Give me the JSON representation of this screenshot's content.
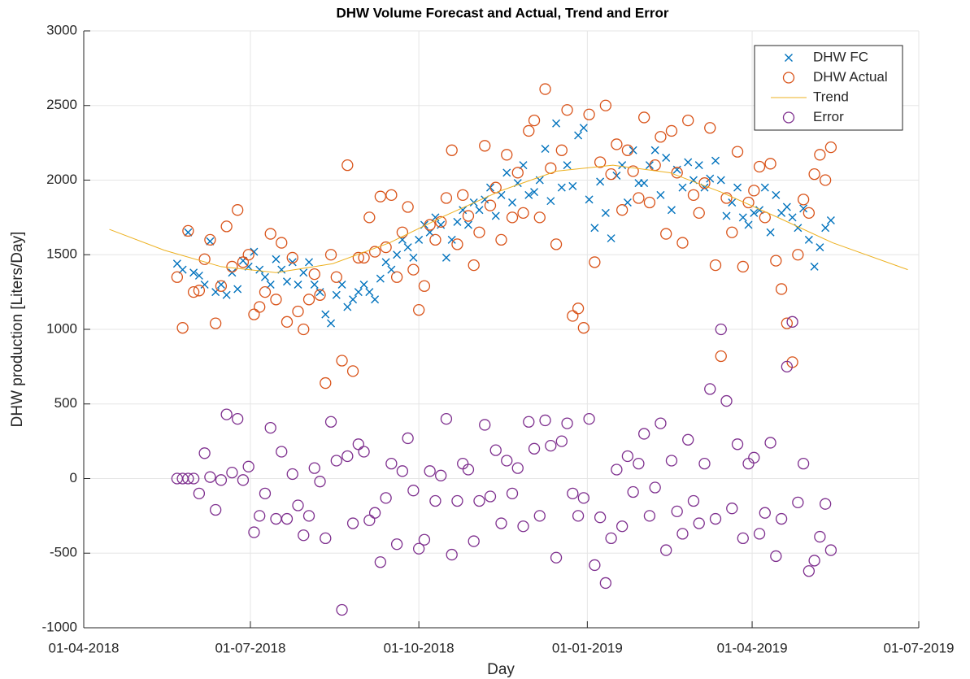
{
  "chart_data": {
    "type": "scatter",
    "title": "DHW Volume Forecast and Actual, Trend and Error",
    "x_label": "Day",
    "y_label": "DHW production [Liters/Day]",
    "xlim": [
      "2018-04-01",
      "2019-07-01"
    ],
    "xticks": [
      {
        "value": "2018-04-01",
        "label": "01-04-2018"
      },
      {
        "value": "2018-07-01",
        "label": "01-07-2018"
      },
      {
        "value": "2018-10-01",
        "label": "01-10-2018"
      },
      {
        "value": "2019-01-01",
        "label": "01-01-2019"
      },
      {
        "value": "2019-04-01",
        "label": "01-04-2019"
      },
      {
        "value": "2019-07-01",
        "label": "01-07-2019"
      }
    ],
    "ylim": [
      -1000,
      3000
    ],
    "yticks": [
      -1000,
      -500,
      0,
      500,
      1000,
      1500,
      2000,
      2500,
      3000
    ],
    "grid": true,
    "legend": "top-right",
    "x": [
      "2018-05-22",
      "2018-05-25",
      "2018-05-28",
      "2018-05-31",
      "2018-06-03",
      "2018-06-06",
      "2018-06-09",
      "2018-06-12",
      "2018-06-15",
      "2018-06-18",
      "2018-06-21",
      "2018-06-24",
      "2018-06-27",
      "2018-06-30",
      "2018-07-03",
      "2018-07-06",
      "2018-07-09",
      "2018-07-12",
      "2018-07-15",
      "2018-07-18",
      "2018-07-21",
      "2018-07-24",
      "2018-07-27",
      "2018-07-30",
      "2018-08-02",
      "2018-08-05",
      "2018-08-08",
      "2018-08-11",
      "2018-08-14",
      "2018-08-17",
      "2018-08-20",
      "2018-08-23",
      "2018-08-26",
      "2018-08-29",
      "2018-09-01",
      "2018-09-04",
      "2018-09-07",
      "2018-09-10",
      "2018-09-13",
      "2018-09-16",
      "2018-09-19",
      "2018-09-22",
      "2018-09-25",
      "2018-09-28",
      "2018-10-01",
      "2018-10-04",
      "2018-10-07",
      "2018-10-10",
      "2018-10-13",
      "2018-10-16",
      "2018-10-19",
      "2018-10-22",
      "2018-10-25",
      "2018-10-28",
      "2018-10-31",
      "2018-11-03",
      "2018-11-06",
      "2018-11-09",
      "2018-11-12",
      "2018-11-15",
      "2018-11-18",
      "2018-11-21",
      "2018-11-24",
      "2018-11-27",
      "2018-11-30",
      "2018-12-03",
      "2018-12-06",
      "2018-12-09",
      "2018-12-12",
      "2018-12-15",
      "2018-12-18",
      "2018-12-21",
      "2018-12-24",
      "2018-12-27",
      "2018-12-30",
      "2019-01-02",
      "2019-01-05",
      "2019-01-08",
      "2019-01-11",
      "2019-01-14",
      "2019-01-17",
      "2019-01-20",
      "2019-01-23",
      "2019-01-26",
      "2019-01-29",
      "2019-02-01",
      "2019-02-04",
      "2019-02-07",
      "2019-02-10",
      "2019-02-13",
      "2019-02-16",
      "2019-02-19",
      "2019-02-22",
      "2019-02-25",
      "2019-02-28",
      "2019-03-03",
      "2019-03-06",
      "2019-03-09",
      "2019-03-12",
      "2019-03-15",
      "2019-03-18",
      "2019-03-21",
      "2019-03-24",
      "2019-03-27",
      "2019-03-30",
      "2019-04-02",
      "2019-04-05",
      "2019-04-08",
      "2019-04-11",
      "2019-04-14",
      "2019-04-17",
      "2019-04-20",
      "2019-04-23",
      "2019-04-26",
      "2019-04-29",
      "2019-05-02",
      "2019-05-05",
      "2019-05-08",
      "2019-05-11",
      "2019-05-14"
    ],
    "series": [
      {
        "name": "DHW FC",
        "color": "#0072BD",
        "marker": "x",
        "values": [
          1440,
          1400,
          1650,
          1380,
          1360,
          1300,
          1590,
          1250,
          1300,
          1230,
          1380,
          1270,
          1460,
          1420,
          1520,
          1400,
          1350,
          1300,
          1470,
          1400,
          1320,
          1450,
          1300,
          1380,
          1450,
          1300,
          1250,
          1100,
          1040,
          1230,
          1300,
          1150,
          1200,
          1250,
          1300,
          1250,
          1200,
          1340,
          1450,
          1400,
          1500,
          1600,
          1550,
          1480,
          1600,
          1700,
          1650,
          1750,
          1700,
          1480,
          1600,
          1720,
          1800,
          1700,
          1850,
          1800,
          1870,
          1950,
          1760,
          1900,
          2050,
          1850,
          1980,
          2100,
          1900,
          1920,
          2000,
          2210,
          1860,
          2380,
          1950,
          2100,
          1960,
          2300,
          2350,
          1870,
          1680,
          1990,
          1780,
          1610,
          2030,
          2100,
          1850,
          2200,
          1980,
          1980,
          2100,
          2200,
          1900,
          2150,
          1800,
          2070,
          1950,
          2120,
          2000,
          2100,
          1950,
          2010,
          2130,
          2000,
          1760,
          1850,
          1950,
          1750,
          1700,
          1780,
          1800,
          1950,
          1650,
          1900,
          1780,
          1820,
          1750,
          1680,
          1810,
          1600,
          1420,
          1550,
          1680,
          1730
        ]
      },
      {
        "name": "DHW Actual",
        "color": "#D95319",
        "marker": "o",
        "values": [
          1350,
          1010,
          1660,
          1250,
          1260,
          1470,
          1600,
          1040,
          1290,
          1690,
          1420,
          1800,
          1450,
          1500,
          1100,
          1150,
          1250,
          1640,
          1200,
          1580,
          1050,
          1480,
          1120,
          1000,
          1200,
          1370,
          1230,
          640,
          1500,
          1350,
          790,
          2100,
          720,
          1480,
          1480,
          1750,
          1520,
          1890,
          1550,
          1900,
          1350,
          1650,
          1820,
          1400,
          1130,
          1290,
          1700,
          1600,
          1720,
          1880,
          2200,
          1570,
          1900,
          1760,
          1430,
          1650,
          2230,
          1830,
          1950,
          1600,
          2170,
          1750,
          2050,
          1780,
          2330,
          2400,
          1750,
          2610,
          2080,
          1570,
          2200,
          2470,
          1090,
          1140,
          1010,
          2440,
          1450,
          2120,
          2500,
          2040,
          2240,
          1800,
          2200,
          2060,
          1880,
          2420,
          1850,
          2100,
          2290,
          1640,
          2330,
          2050,
          1580,
          2400,
          1900,
          1780,
          1980,
          2350,
          1430,
          820,
          1880,
          1650,
          2190,
          1420,
          1850,
          1930,
          2090,
          1750,
          2110,
          1460,
          1270,
          1040,
          780,
          1500,
          1870,
          1780,
          2040,
          2170,
          2000,
          2220
        ]
      },
      {
        "name": "Trend",
        "color": "#EDB120",
        "marker": "line",
        "x": [
          "2018-04-15",
          "2018-05-15",
          "2018-06-15",
          "2018-07-15",
          "2018-08-15",
          "2018-09-15",
          "2018-10-15",
          "2018-11-15",
          "2018-12-15",
          "2019-01-15",
          "2019-02-15",
          "2019-03-15",
          "2019-04-15",
          "2019-05-15",
          "2019-06-25"
        ],
        "values": [
          1670,
          1530,
          1420,
          1380,
          1440,
          1580,
          1760,
          1930,
          2060,
          2100,
          2050,
          1920,
          1750,
          1580,
          1400
        ]
      },
      {
        "name": "Error",
        "color": "#7E2F8E",
        "marker": "o",
        "values": [
          0,
          0,
          0,
          0,
          -100,
          170,
          10,
          -210,
          -10,
          430,
          40,
          400,
          -10,
          80,
          -360,
          -250,
          -100,
          340,
          -270,
          180,
          -270,
          30,
          -180,
          -380,
          -250,
          70,
          -20,
          -400,
          380,
          120,
          -880,
          150,
          -300,
          230,
          180,
          -280,
          -230,
          -560,
          -130,
          100,
          -440,
          50,
          270,
          -80,
          -470,
          -410,
          50,
          -150,
          20,
          400,
          -510,
          -150,
          100,
          60,
          -420,
          -150,
          360,
          -120,
          190,
          -300,
          120,
          -100,
          70,
          -320,
          380,
          200,
          -250,
          390,
          220,
          -530,
          250,
          370,
          -100,
          -250,
          -130,
          400,
          -580,
          -260,
          -700,
          -400,
          60,
          -320,
          150,
          -90,
          100,
          300,
          -250,
          -60,
          370,
          -480,
          120,
          -220,
          -370,
          260,
          -150,
          -300,
          100,
          600,
          -270,
          1000,
          520,
          -200,
          230,
          -400,
          100,
          140,
          -370,
          -230,
          240,
          -520,
          -270,
          750,
          1050,
          -160,
          100,
          -620,
          -550,
          -390,
          -170,
          -480
        ]
      }
    ]
  }
}
